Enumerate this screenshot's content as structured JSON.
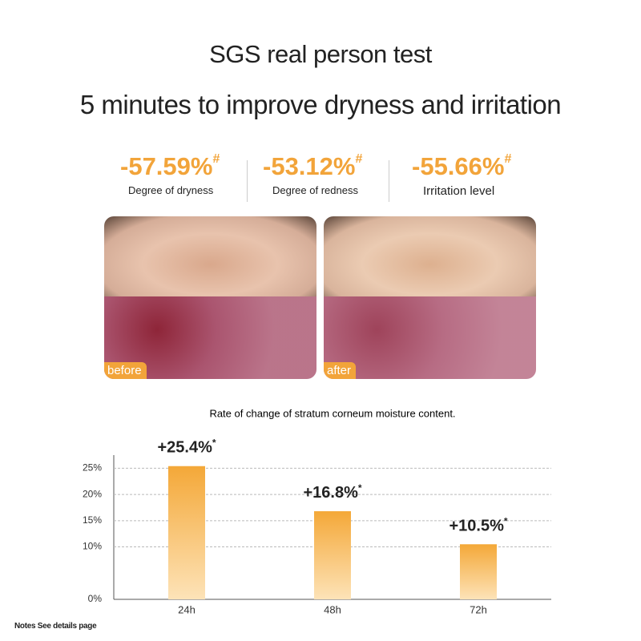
{
  "header": {
    "title": "SGS real person test",
    "subtitle": "5 minutes to improve dryness and irritation"
  },
  "stats": [
    {
      "value": "-57.59%",
      "mark": "#",
      "label": "Degree of dryness"
    },
    {
      "value": "-53.12%",
      "mark": "#",
      "label": "Degree of redness"
    },
    {
      "value": "-55.66%",
      "mark": "#",
      "label": "Irritation level"
    }
  ],
  "photos": [
    {
      "label": "before"
    },
    {
      "label": "after"
    }
  ],
  "chart_data": {
    "type": "bar",
    "title": "Rate of change of stratum corneum moisture content.",
    "categories": [
      "24h",
      "48h",
      "72h"
    ],
    "values": [
      25.4,
      16.8,
      10.5
    ],
    "value_labels": [
      "+25.4%",
      "+16.8%",
      "+10.5%"
    ],
    "footnote_mark": "*",
    "color": "#f4a838",
    "ylim": [
      0,
      27.5
    ],
    "yticks": [
      {
        "value": 0,
        "label": "0%"
      },
      {
        "value": 10,
        "label": "10%"
      },
      {
        "value": 15,
        "label": "15%"
      },
      {
        "value": 20,
        "label": "20%"
      },
      {
        "value": 25,
        "label": "25%"
      }
    ],
    "grid": true
  },
  "notes": "Notes See details page"
}
